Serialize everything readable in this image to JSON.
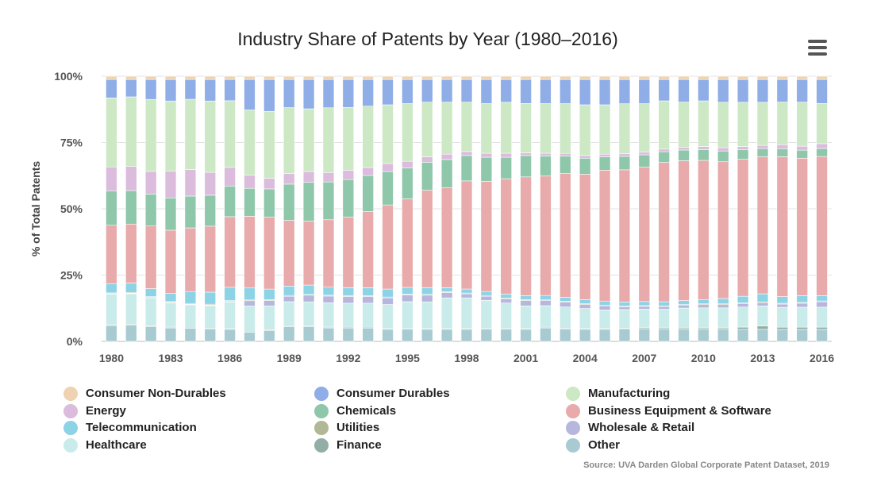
{
  "header": {
    "menu_icon": "hamburger-menu-icon"
  },
  "source": "Source: UVA Darden Global Corporate Patent Dataset, 2019",
  "chart_data": {
    "type": "bar",
    "stacking": "percent",
    "title": "Industry Share of Patents by Year (1980–2016)",
    "xlabel": "",
    "ylabel": "% of Total Patents",
    "ylim": [
      0,
      100
    ],
    "yticks": [
      "0%",
      "25%",
      "50%",
      "75%",
      "100%"
    ],
    "grid": true,
    "legend_placement": "bottom",
    "categories": [
      1980,
      1981,
      1982,
      1983,
      1984,
      1985,
      1986,
      1987,
      1988,
      1989,
      1990,
      1991,
      1992,
      1993,
      1994,
      1995,
      1996,
      1997,
      1998,
      1999,
      2000,
      2001,
      2002,
      2003,
      2004,
      2005,
      2006,
      2007,
      2008,
      2009,
      2010,
      2011,
      2012,
      2013,
      2014,
      2015,
      2016
    ],
    "xtick_labels": [
      "1980",
      "1983",
      "1986",
      "1989",
      "1992",
      "1995",
      "1998",
      "2001",
      "2004",
      "2007",
      "2010",
      "2013",
      "2016"
    ],
    "series": [
      {
        "name": "Other",
        "color": "#a8cbd2",
        "values": [
          6.0,
          6.0,
          5.5,
          5.0,
          5.0,
          4.5,
          4.5,
          3.5,
          4.0,
          5.5,
          5.5,
          5.0,
          5.0,
          5.0,
          4.5,
          4.5,
          4.5,
          4.5,
          4.5,
          4.5,
          4.5,
          4.5,
          5.0,
          4.5,
          4.5,
          4.5,
          4.5,
          4.5,
          4.5,
          4.5,
          4.5,
          4.5,
          4.5,
          4.5,
          4.5,
          4.5,
          4.5
        ]
      },
      {
        "name": "Finance",
        "color": "#93aea6",
        "values": [
          0.3,
          0.3,
          0.3,
          0.3,
          0.3,
          0.3,
          0.3,
          0.3,
          0.3,
          0.3,
          0.3,
          0.3,
          0.3,
          0.3,
          0.3,
          0.3,
          0.3,
          0.3,
          0.3,
          0.3,
          0.3,
          0.3,
          0.3,
          0.3,
          0.3,
          0.3,
          0.3,
          0.5,
          0.5,
          0.5,
          0.5,
          0.5,
          0.8,
          1.2,
          0.8,
          0.8,
          0.8
        ]
      },
      {
        "name": "Healthcare",
        "color": "#c9ecea",
        "values": [
          11.5,
          11.5,
          10.5,
          9.0,
          8.5,
          8.5,
          10.0,
          9.5,
          9.0,
          9.0,
          9.0,
          9.0,
          9.0,
          9.0,
          9.0,
          10.0,
          10.0,
          11.5,
          11.5,
          10.5,
          9.5,
          8.5,
          8.0,
          8.0,
          7.5,
          7.0,
          7.0,
          7.0,
          7.0,
          7.5,
          7.5,
          7.5,
          7.5,
          7.5,
          7.5,
          7.5,
          7.5
        ]
      },
      {
        "name": "Wholesale & Retail",
        "color": "#b7b6dd",
        "values": [
          0.2,
          0.2,
          0.2,
          0.2,
          0.2,
          0.2,
          0.2,
          2.0,
          2.0,
          2.0,
          2.5,
          2.5,
          2.5,
          2.5,
          2.5,
          2.5,
          2.5,
          2.0,
          1.5,
          1.5,
          1.5,
          2.0,
          2.0,
          1.8,
          1.5,
          1.5,
          1.0,
          1.0,
          1.0,
          1.0,
          1.2,
          1.2,
          1.2,
          1.2,
          1.2,
          1.5,
          2.0
        ]
      },
      {
        "name": "Utilities",
        "color": "#b1b896",
        "values": [
          0.3,
          0.3,
          0.3,
          0.3,
          0.3,
          0.3,
          0.3,
          0.3,
          0.3,
          0.3,
          0.3,
          0.3,
          0.3,
          0.3,
          0.3,
          0.3,
          0.3,
          0.3,
          0.3,
          0.3,
          0.3,
          0.3,
          0.3,
          0.3,
          0.3,
          0.3,
          0.3,
          0.3,
          0.3,
          0.3,
          0.3,
          0.3,
          0.3,
          0.3,
          0.3,
          0.3,
          0.3
        ]
      },
      {
        "name": "Telecommunication",
        "color": "#8dd3e6",
        "values": [
          3.5,
          3.5,
          3.0,
          3.0,
          4.5,
          4.5,
          5.0,
          4.5,
          4.0,
          3.5,
          3.5,
          3.0,
          3.0,
          3.0,
          3.0,
          2.5,
          2.5,
          1.5,
          1.5,
          1.5,
          1.5,
          1.5,
          1.5,
          1.5,
          1.5,
          1.5,
          1.5,
          1.5,
          1.5,
          1.5,
          1.5,
          2.0,
          2.5,
          3.0,
          2.5,
          2.5,
          2.0
        ]
      },
      {
        "name": "Business Equipment & Software",
        "color": "#e8aaaa",
        "values": [
          22.0,
          22.0,
          23.5,
          23.5,
          24.0,
          24.5,
          26.5,
          27.0,
          27.0,
          24.5,
          24.0,
          25.0,
          26.5,
          28.5,
          31.5,
          33.0,
          36.5,
          37.5,
          40.5,
          41.0,
          43.0,
          44.5,
          44.5,
          46.0,
          47.0,
          49.0,
          49.0,
          50.0,
          52.0,
          52.5,
          52.0,
          51.0,
          51.0,
          51.0,
          52.5,
          51.5,
          52.0
        ]
      },
      {
        "name": "Chemicals",
        "color": "#8ec7aa",
        "values": [
          13.0,
          12.5,
          12.0,
          12.0,
          12.0,
          11.5,
          11.5,
          10.5,
          10.5,
          13.5,
          14.5,
          14.0,
          14.0,
          13.5,
          12.5,
          11.5,
          10.5,
          10.5,
          9.5,
          9.0,
          8.0,
          8.0,
          7.5,
          6.5,
          6.0,
          5.0,
          5.0,
          4.5,
          4.0,
          4.0,
          4.0,
          4.0,
          3.5,
          3.0,
          3.0,
          3.0,
          3.0
        ]
      },
      {
        "name": "Energy",
        "color": "#dbbcdd",
        "values": [
          9.0,
          9.0,
          8.5,
          10.0,
          10.0,
          8.5,
          7.0,
          5.0,
          4.0,
          4.0,
          4.0,
          3.5,
          3.5,
          3.0,
          3.0,
          2.5,
          2.0,
          2.0,
          1.5,
          1.5,
          1.5,
          1.0,
          1.0,
          1.0,
          1.0,
          1.0,
          1.0,
          1.0,
          1.0,
          1.0,
          1.2,
          1.2,
          1.2,
          1.2,
          1.5,
          1.5,
          1.8
        ]
      },
      {
        "name": "Manufacturing",
        "color": "#cde8c4",
        "values": [
          26.0,
          26.0,
          27.0,
          26.0,
          26.5,
          26.5,
          25.0,
          24.5,
          25.0,
          24.5,
          23.5,
          24.0,
          23.5,
          23.0,
          22.0,
          21.5,
          20.5,
          19.5,
          18.5,
          18.5,
          19.0,
          18.5,
          18.5,
          18.5,
          19.0,
          18.5,
          18.5,
          18.0,
          18.0,
          17.0,
          17.0,
          17.0,
          16.5,
          16.0,
          16.0,
          16.5,
          15.0
        ]
      },
      {
        "name": "Consumer Durables",
        "color": "#8fade6",
        "values": [
          7.0,
          6.5,
          7.5,
          8.0,
          7.5,
          8.0,
          8.0,
          11.5,
          12.0,
          10.5,
          11.0,
          10.5,
          10.5,
          10.0,
          9.5,
          9.0,
          8.5,
          8.5,
          8.5,
          9.0,
          8.5,
          9.0,
          9.0,
          9.0,
          9.5,
          9.5,
          9.0,
          9.0,
          8.0,
          8.5,
          8.0,
          8.5,
          8.5,
          8.5,
          8.5,
          8.5,
          9.0
        ]
      },
      {
        "name": "Consumer Non-Durables",
        "color": "#eed2b2",
        "values": [
          1.2,
          1.2,
          1.2,
          1.2,
          1.2,
          1.2,
          1.2,
          1.2,
          1.2,
          1.2,
          1.2,
          1.2,
          1.2,
          1.2,
          1.2,
          1.2,
          1.2,
          1.2,
          1.2,
          1.2,
          1.2,
          1.2,
          1.2,
          1.2,
          1.2,
          1.2,
          1.2,
          1.2,
          1.2,
          1.2,
          1.2,
          1.2,
          1.2,
          1.2,
          1.2,
          1.2,
          1.2
        ]
      }
    ],
    "legend_order": [
      "Consumer Non-Durables",
      "Consumer Durables",
      "Manufacturing",
      "Energy",
      "Chemicals",
      "Business Equipment & Software",
      "Telecommunication",
      "Utilities",
      "Wholesale & Retail",
      "Healthcare",
      "Finance",
      "Other"
    ]
  }
}
